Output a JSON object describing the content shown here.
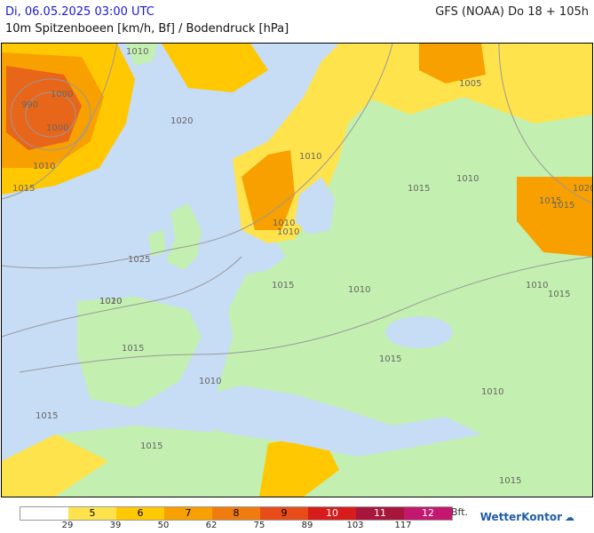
{
  "header": {
    "date": "Di, 06.05.2025 03:00 UTC",
    "model": "GFS (NOAA) Do 18 + 105h",
    "subtitle": "10m Spitzenboeen [km/h, Bf] / Bodendruck [hPa]"
  },
  "map": {
    "isobar_labels": [
      "1010",
      "1000",
      "990",
      "1000",
      "1005",
      "1010",
      "1020",
      "1010",
      "1015",
      "1010",
      "1015",
      "1010",
      "1010",
      "1020",
      "1015",
      "1025",
      "1010",
      "1015",
      "1010",
      "1020",
      "1015",
      "1015",
      "1015",
      "1010",
      "1010",
      "1015",
      "1010",
      "1015",
      "1015",
      "1015"
    ]
  },
  "legend": {
    "bft": [
      "5",
      "6",
      "7",
      "8",
      "9",
      "10",
      "11",
      "12"
    ],
    "kmh": [
      "29",
      "39",
      "50",
      "62",
      "75",
      "89",
      "103",
      "117"
    ],
    "unit": "Bft.",
    "colors": [
      "#ffffff",
      "#ffe34d",
      "#ffc800",
      "#f8a000",
      "#f07c10",
      "#e84c18",
      "#d81c1c",
      "#a8163c",
      "#c41870"
    ]
  },
  "branding": {
    "name": "WetterKontor",
    "icon": "weather-icon"
  }
}
